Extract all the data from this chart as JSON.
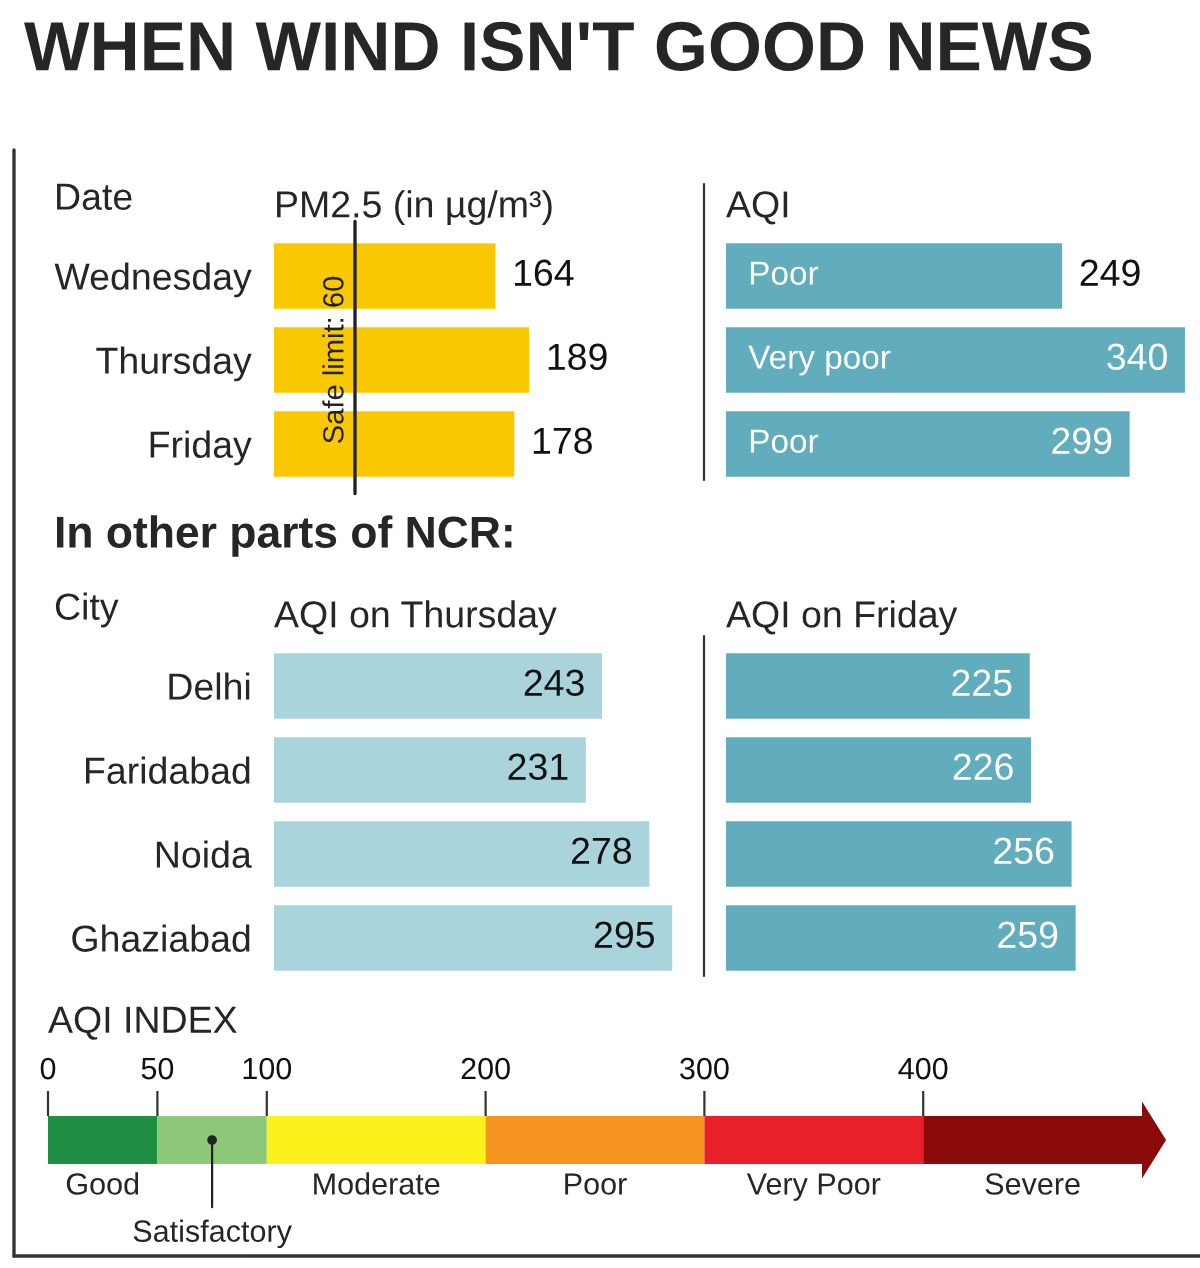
{
  "chart_data": [
    {
      "type": "bar",
      "orientation": "horizontal",
      "title": "WHEN WIND ISN'T GOOD NEWS",
      "subtitle": "PM2.5 (in µg/m³)",
      "ylabel": "Date",
      "categories": [
        "Wednesday",
        "Thursday",
        "Friday"
      ],
      "values": [
        164,
        189,
        178
      ],
      "color": "#f9c800",
      "data_labels": true,
      "ref_lines": [
        {
          "axis": "x",
          "value": 60,
          "label": "Safe limit: 60",
          "color": "#222222"
        }
      ]
    },
    {
      "type": "bar",
      "orientation": "horizontal",
      "title": "AQI",
      "categories": [
        null,
        null,
        null
      ],
      "values": [
        249,
        340,
        299
      ],
      "color": "#62adbd",
      "data_labels": true,
      "annotations": [
        "Poor",
        "Very poor",
        "Poor"
      ]
    },
    {
      "type": "bar",
      "orientation": "horizontal",
      "title": "AQI on Thursday",
      "ylabel": "City",
      "categories": [
        "Delhi",
        "Faridabad",
        "Noida",
        "Ghaziabad"
      ],
      "values": [
        243,
        231,
        278,
        295
      ],
      "color": "#a9d4dc",
      "data_labels": true,
      "annotations": [
        "In other parts of NCR:"
      ]
    },
    {
      "type": "bar",
      "orientation": "horizontal",
      "title": "AQI on Friday",
      "categories": [
        null,
        null,
        null,
        null
      ],
      "values": [
        225,
        226,
        256,
        259
      ],
      "color": "#62adbd",
      "data_labels": true
    },
    {
      "type": "bar",
      "orientation": "horizontal",
      "stacked": true,
      "title": "AQI INDEX",
      "categories": [
        null
      ],
      "xlim": [
        0,
        500
      ],
      "xticks": [
        0,
        50,
        100,
        200,
        300,
        400
      ],
      "series": [
        {
          "name": "Good",
          "color": "#1f8f44",
          "values": [
            50
          ]
        },
        {
          "name": "Satisfactory",
          "color": "#8cc878",
          "values": [
            50
          ]
        },
        {
          "name": "Moderate",
          "color": "#fbf21c",
          "values": [
            100
          ]
        },
        {
          "name": "Poor",
          "color": "#f5951f",
          "values": [
            100
          ]
        },
        {
          "name": "Very Poor",
          "color": "#e8202a",
          "values": [
            100
          ]
        },
        {
          "name": "Severe",
          "color": "#8b0a0a",
          "values": [
            100
          ]
        }
      ]
    }
  ]
}
